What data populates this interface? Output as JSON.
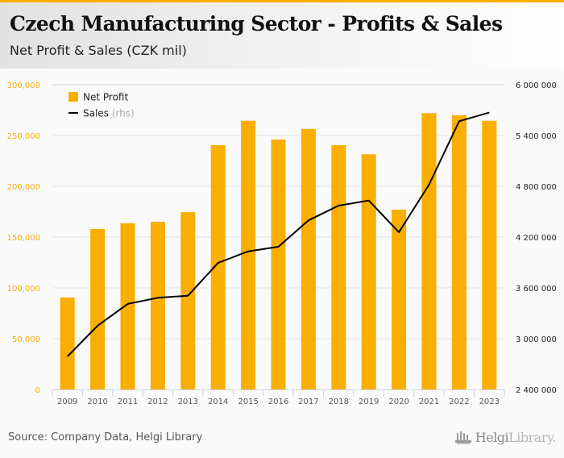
{
  "header": {
    "title": "Czech Manufacturing Sector - Profits & Sales",
    "subtitle": "Net Profit & Sales (CZK mil)"
  },
  "footer": {
    "source": "Source: Company Data, Helgi Library",
    "brand_bold": "Helgi",
    "brand_light": "Library."
  },
  "colors": {
    "accent": "#f9ae00",
    "bar": "#f9ae00",
    "line": "#000000",
    "grid": "#e4e4e4",
    "axis": "#c8d4e8"
  },
  "chart_data": {
    "type": "bar+line",
    "title": "Czech Manufacturing Sector - Profits & Sales",
    "subtitle": "Net Profit & Sales (CZK mil)",
    "categories": [
      "2009",
      "2010",
      "2011",
      "2012",
      "2013",
      "2014",
      "2015",
      "2016",
      "2017",
      "2018",
      "2019",
      "2020",
      "2021",
      "2022",
      "2023"
    ],
    "series": [
      {
        "name": "Net Profit",
        "type": "bar",
        "axis": "left",
        "values": [
          90500,
          158000,
          163500,
          165000,
          174500,
          240500,
          264500,
          246000,
          256500,
          240500,
          231500,
          177000,
          272000,
          270000,
          264500
        ]
      },
      {
        "name": "Sales",
        "name_suffix": "(rhs)",
        "type": "line",
        "axis": "right",
        "values": [
          2790000,
          3152000,
          3410000,
          3483000,
          3508000,
          3895000,
          4031000,
          4086000,
          4397000,
          4571000,
          4631000,
          4257000,
          4819000,
          5569000,
          5670000
        ]
      }
    ],
    "left_axis": {
      "ylim": [
        0,
        300000
      ],
      "ticks": [
        0,
        50000,
        100000,
        150000,
        200000,
        250000,
        300000
      ],
      "tick_labels": [
        "0",
        "50,000",
        "100,000",
        "150,000",
        "200,000",
        "250,000",
        "300,000"
      ]
    },
    "right_axis": {
      "ylim": [
        2400000,
        6000000
      ],
      "ticks": [
        2400000,
        3000000,
        3600000,
        4200000,
        4800000,
        5400000,
        6000000
      ],
      "tick_labels": [
        "2 400 000",
        "3 000 000",
        "3 600 000",
        "4 200 000",
        "4 800 000",
        "5 400 000",
        "6 000 000"
      ]
    },
    "xlabel": "",
    "ylabel": "",
    "grid": true,
    "legend": {
      "position": "top-left",
      "entries": [
        {
          "label": "Net Profit",
          "marker": "square"
        },
        {
          "label": "Sales",
          "suffix": "(rhs)",
          "marker": "line"
        }
      ]
    }
  }
}
